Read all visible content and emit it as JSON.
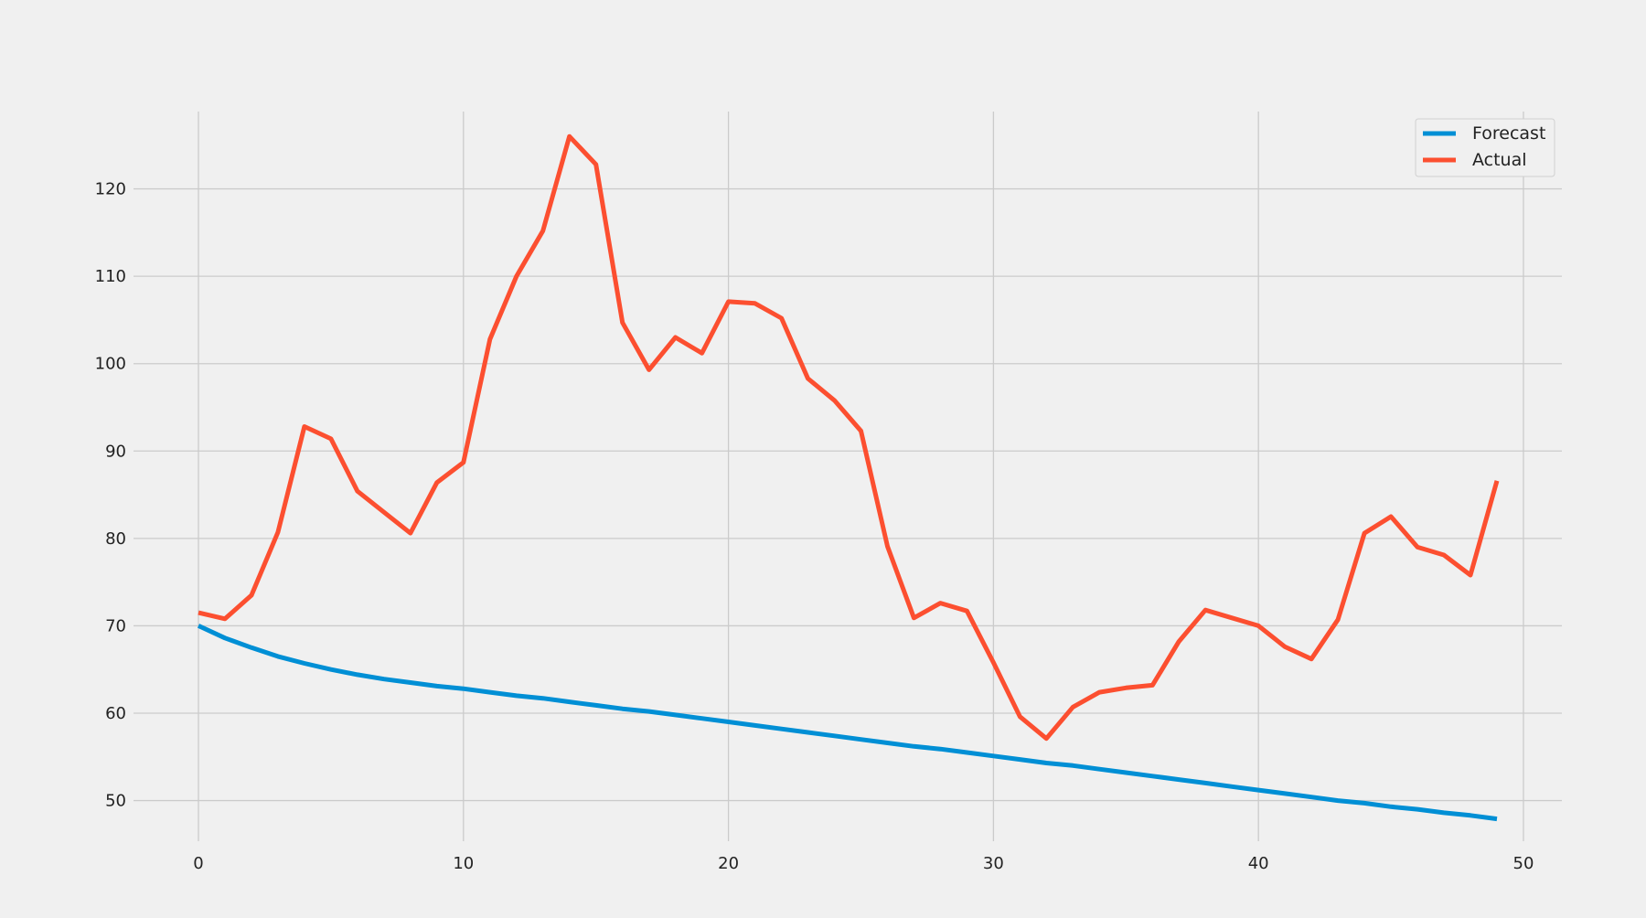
{
  "chart_data": {
    "type": "line",
    "title": "",
    "xlabel": "",
    "ylabel": "",
    "xlim": [
      -2.45,
      51.45
    ],
    "ylim": [
      45.35,
      128.85
    ],
    "x_ticks": [
      0,
      10,
      20,
      30,
      40,
      50
    ],
    "y_ticks": [
      50,
      60,
      70,
      80,
      90,
      100,
      110,
      120
    ],
    "grid": true,
    "legend_position": "top-right",
    "background": "#f0f0f0",
    "x": [
      0,
      1,
      2,
      3,
      4,
      5,
      6,
      7,
      8,
      9,
      10,
      11,
      12,
      13,
      14,
      15,
      16,
      17,
      18,
      19,
      20,
      21,
      22,
      23,
      24,
      25,
      26,
      27,
      28,
      29,
      30,
      31,
      32,
      33,
      34,
      35,
      36,
      37,
      38,
      39,
      40,
      41,
      42,
      43,
      44,
      45,
      46,
      47,
      48,
      49
    ],
    "series": [
      {
        "name": "Forecast",
        "color": "#008fd5",
        "values": [
          70.0,
          68.6,
          67.5,
          66.5,
          65.7,
          65.0,
          64.4,
          63.9,
          63.5,
          63.1,
          62.8,
          62.4,
          62.0,
          61.7,
          61.3,
          60.9,
          60.5,
          60.2,
          59.8,
          59.4,
          59.0,
          58.6,
          58.2,
          57.8,
          57.4,
          57.0,
          56.6,
          56.2,
          55.9,
          55.5,
          55.1,
          54.7,
          54.3,
          54.0,
          53.6,
          53.2,
          52.8,
          52.4,
          52.0,
          51.6,
          51.2,
          50.8,
          50.4,
          50.0,
          49.7,
          49.3,
          49.0,
          48.6,
          48.3,
          47.9
        ]
      },
      {
        "name": "Actual",
        "color": "#fc4f30",
        "values": [
          71.5,
          70.8,
          73.5,
          80.7,
          92.8,
          91.4,
          85.4,
          83.0,
          80.6,
          86.4,
          88.7,
          102.8,
          110.0,
          115.2,
          126.0,
          122.8,
          104.7,
          99.3,
          103.0,
          101.2,
          107.1,
          106.9,
          105.2,
          98.3,
          95.8,
          92.3,
          79.1,
          70.9,
          72.6,
          71.7,
          65.8,
          59.6,
          57.1,
          60.7,
          62.4,
          62.9,
          63.2,
          68.2,
          71.8,
          70.9,
          70.0,
          67.6,
          66.2,
          70.7,
          80.6,
          82.5,
          79.0,
          78.1,
          75.8,
          86.6
        ]
      }
    ]
  }
}
